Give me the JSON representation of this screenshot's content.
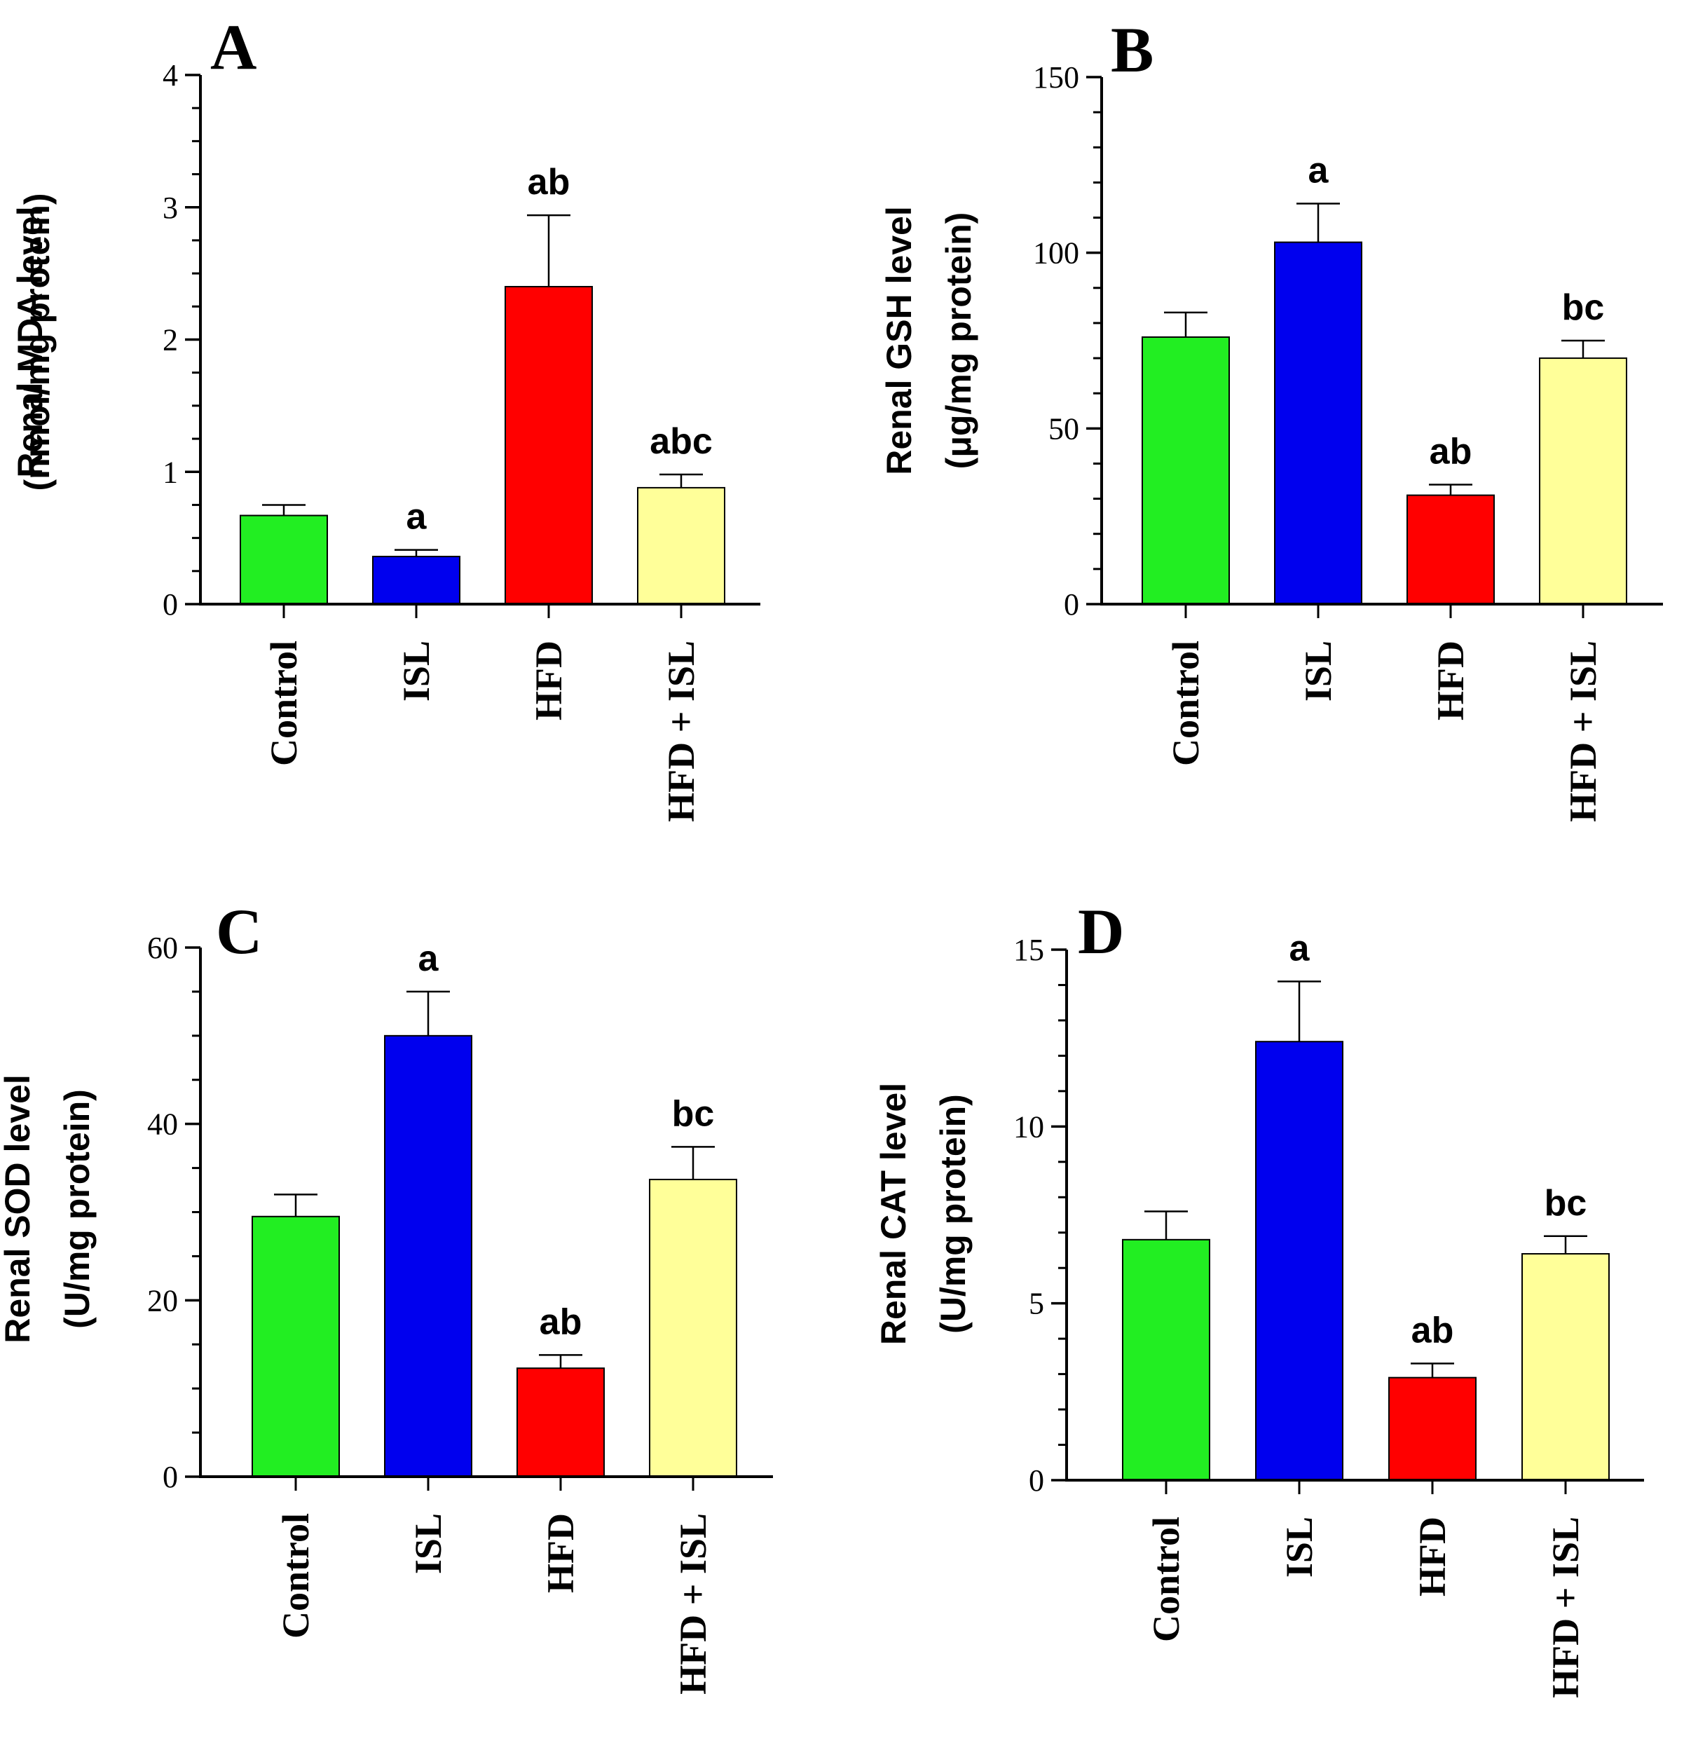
{
  "figure": {
    "background": "#ffffff"
  },
  "chart_data": [
    {
      "type": "bar",
      "panel": "A",
      "categories": [
        "Control",
        "ISL",
        "HFD",
        "HFD + ISL"
      ],
      "values": [
        0.67,
        0.36,
        2.4,
        0.88
      ],
      "errors": [
        0.08,
        0.05,
        0.54,
        0.1
      ],
      "significance": [
        "",
        "a",
        "ab",
        "abc"
      ],
      "colors": [
        "#22ee22",
        "#0000ee",
        "#ff0000",
        "#ffff99"
      ],
      "ylabel": [
        "Renal MDA level",
        "(nmol/mg protein)"
      ],
      "ylim": [
        0,
        4
      ],
      "yticks": [
        0,
        1,
        2,
        3,
        4
      ],
      "ytick_labels": [
        "0",
        "1",
        "2",
        "3",
        "4"
      ],
      "minor_per_major": 4
    },
    {
      "type": "bar",
      "panel": "B",
      "categories": [
        "Control",
        "ISL",
        "HFD",
        "HFD + ISL"
      ],
      "values": [
        76,
        103,
        31,
        70
      ],
      "errors": [
        7,
        11,
        3,
        5
      ],
      "significance": [
        "",
        "a",
        "ab",
        "bc"
      ],
      "colors": [
        "#22ee22",
        "#0000ee",
        "#ff0000",
        "#ffff99"
      ],
      "ylabel": [
        "Renal GSH level",
        "(μg/mg protein)"
      ],
      "ylim": [
        0,
        150
      ],
      "yticks": [
        0,
        50,
        100,
        150
      ],
      "ytick_labels": [
        "0",
        "50",
        "100",
        "150"
      ],
      "minor_per_major": 5
    },
    {
      "type": "bar",
      "panel": "C",
      "categories": [
        "Control",
        "ISL",
        "HFD",
        "HFD + ISL"
      ],
      "values": [
        29.5,
        50,
        12.3,
        33.7
      ],
      "errors": [
        2.5,
        5,
        1.5,
        3.7
      ],
      "significance": [
        "",
        "a",
        "ab",
        "bc"
      ],
      "colors": [
        "#22ee22",
        "#0000ee",
        "#ff0000",
        "#ffff99"
      ],
      "ylabel": [
        "Renal SOD level",
        "(U/mg protein)"
      ],
      "ylim": [
        0,
        60
      ],
      "yticks": [
        0,
        20,
        40,
        60
      ],
      "ytick_labels": [
        "0",
        "20",
        "40",
        "60"
      ],
      "minor_per_major": 4
    },
    {
      "type": "bar",
      "panel": "D",
      "categories": [
        "Control",
        "ISL",
        "HFD",
        "HFD + ISL"
      ],
      "values": [
        6.8,
        12.4,
        2.9,
        6.4
      ],
      "errors": [
        0.8,
        1.7,
        0.4,
        0.5
      ],
      "significance": [
        "",
        "a",
        "ab",
        "bc"
      ],
      "colors": [
        "#22ee22",
        "#0000ee",
        "#ff0000",
        "#ffff99"
      ],
      "ylabel": [
        "Renal CAT level",
        "(U/mg protein)"
      ],
      "ylim": [
        0,
        15
      ],
      "yticks": [
        0,
        5,
        10,
        15
      ],
      "ytick_labels": [
        "0",
        "5",
        "10",
        "15"
      ],
      "minor_per_major": 5
    }
  ]
}
